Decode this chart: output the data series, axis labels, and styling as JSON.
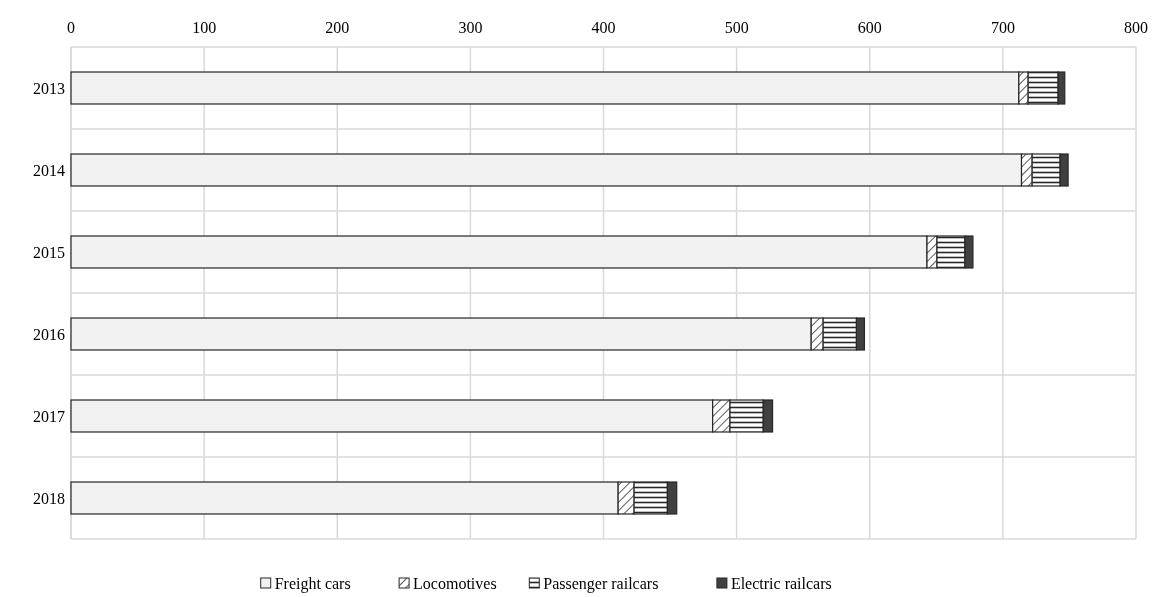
{
  "chart_data": {
    "type": "bar",
    "orientation": "horizontal",
    "stacked": true,
    "categories": [
      "2013",
      "2014",
      "2015",
      "2016",
      "2017",
      "2018"
    ],
    "series": [
      {
        "name": "Freight cars",
        "color": "#f2f2f2",
        "values": [
          712,
          714,
          643,
          556,
          482,
          411
        ]
      },
      {
        "name": "Locomotives",
        "color": "#ffffff",
        "values": [
          7,
          8,
          7.5,
          9,
          13,
          12
        ]
      },
      {
        "name": "Passenger railcars",
        "color": "#ffffff",
        "values": [
          22.5,
          21,
          21,
          25,
          25,
          25
        ]
      },
      {
        "name": "Electric railcars",
        "color": "#404040",
        "values": [
          5,
          6,
          6,
          6,
          7,
          7
        ]
      }
    ],
    "xlim": [
      0,
      800
    ],
    "xticks": [
      0,
      100,
      200,
      300,
      400,
      500,
      600,
      700,
      800
    ],
    "grid": true,
    "legend": "bottom"
  }
}
